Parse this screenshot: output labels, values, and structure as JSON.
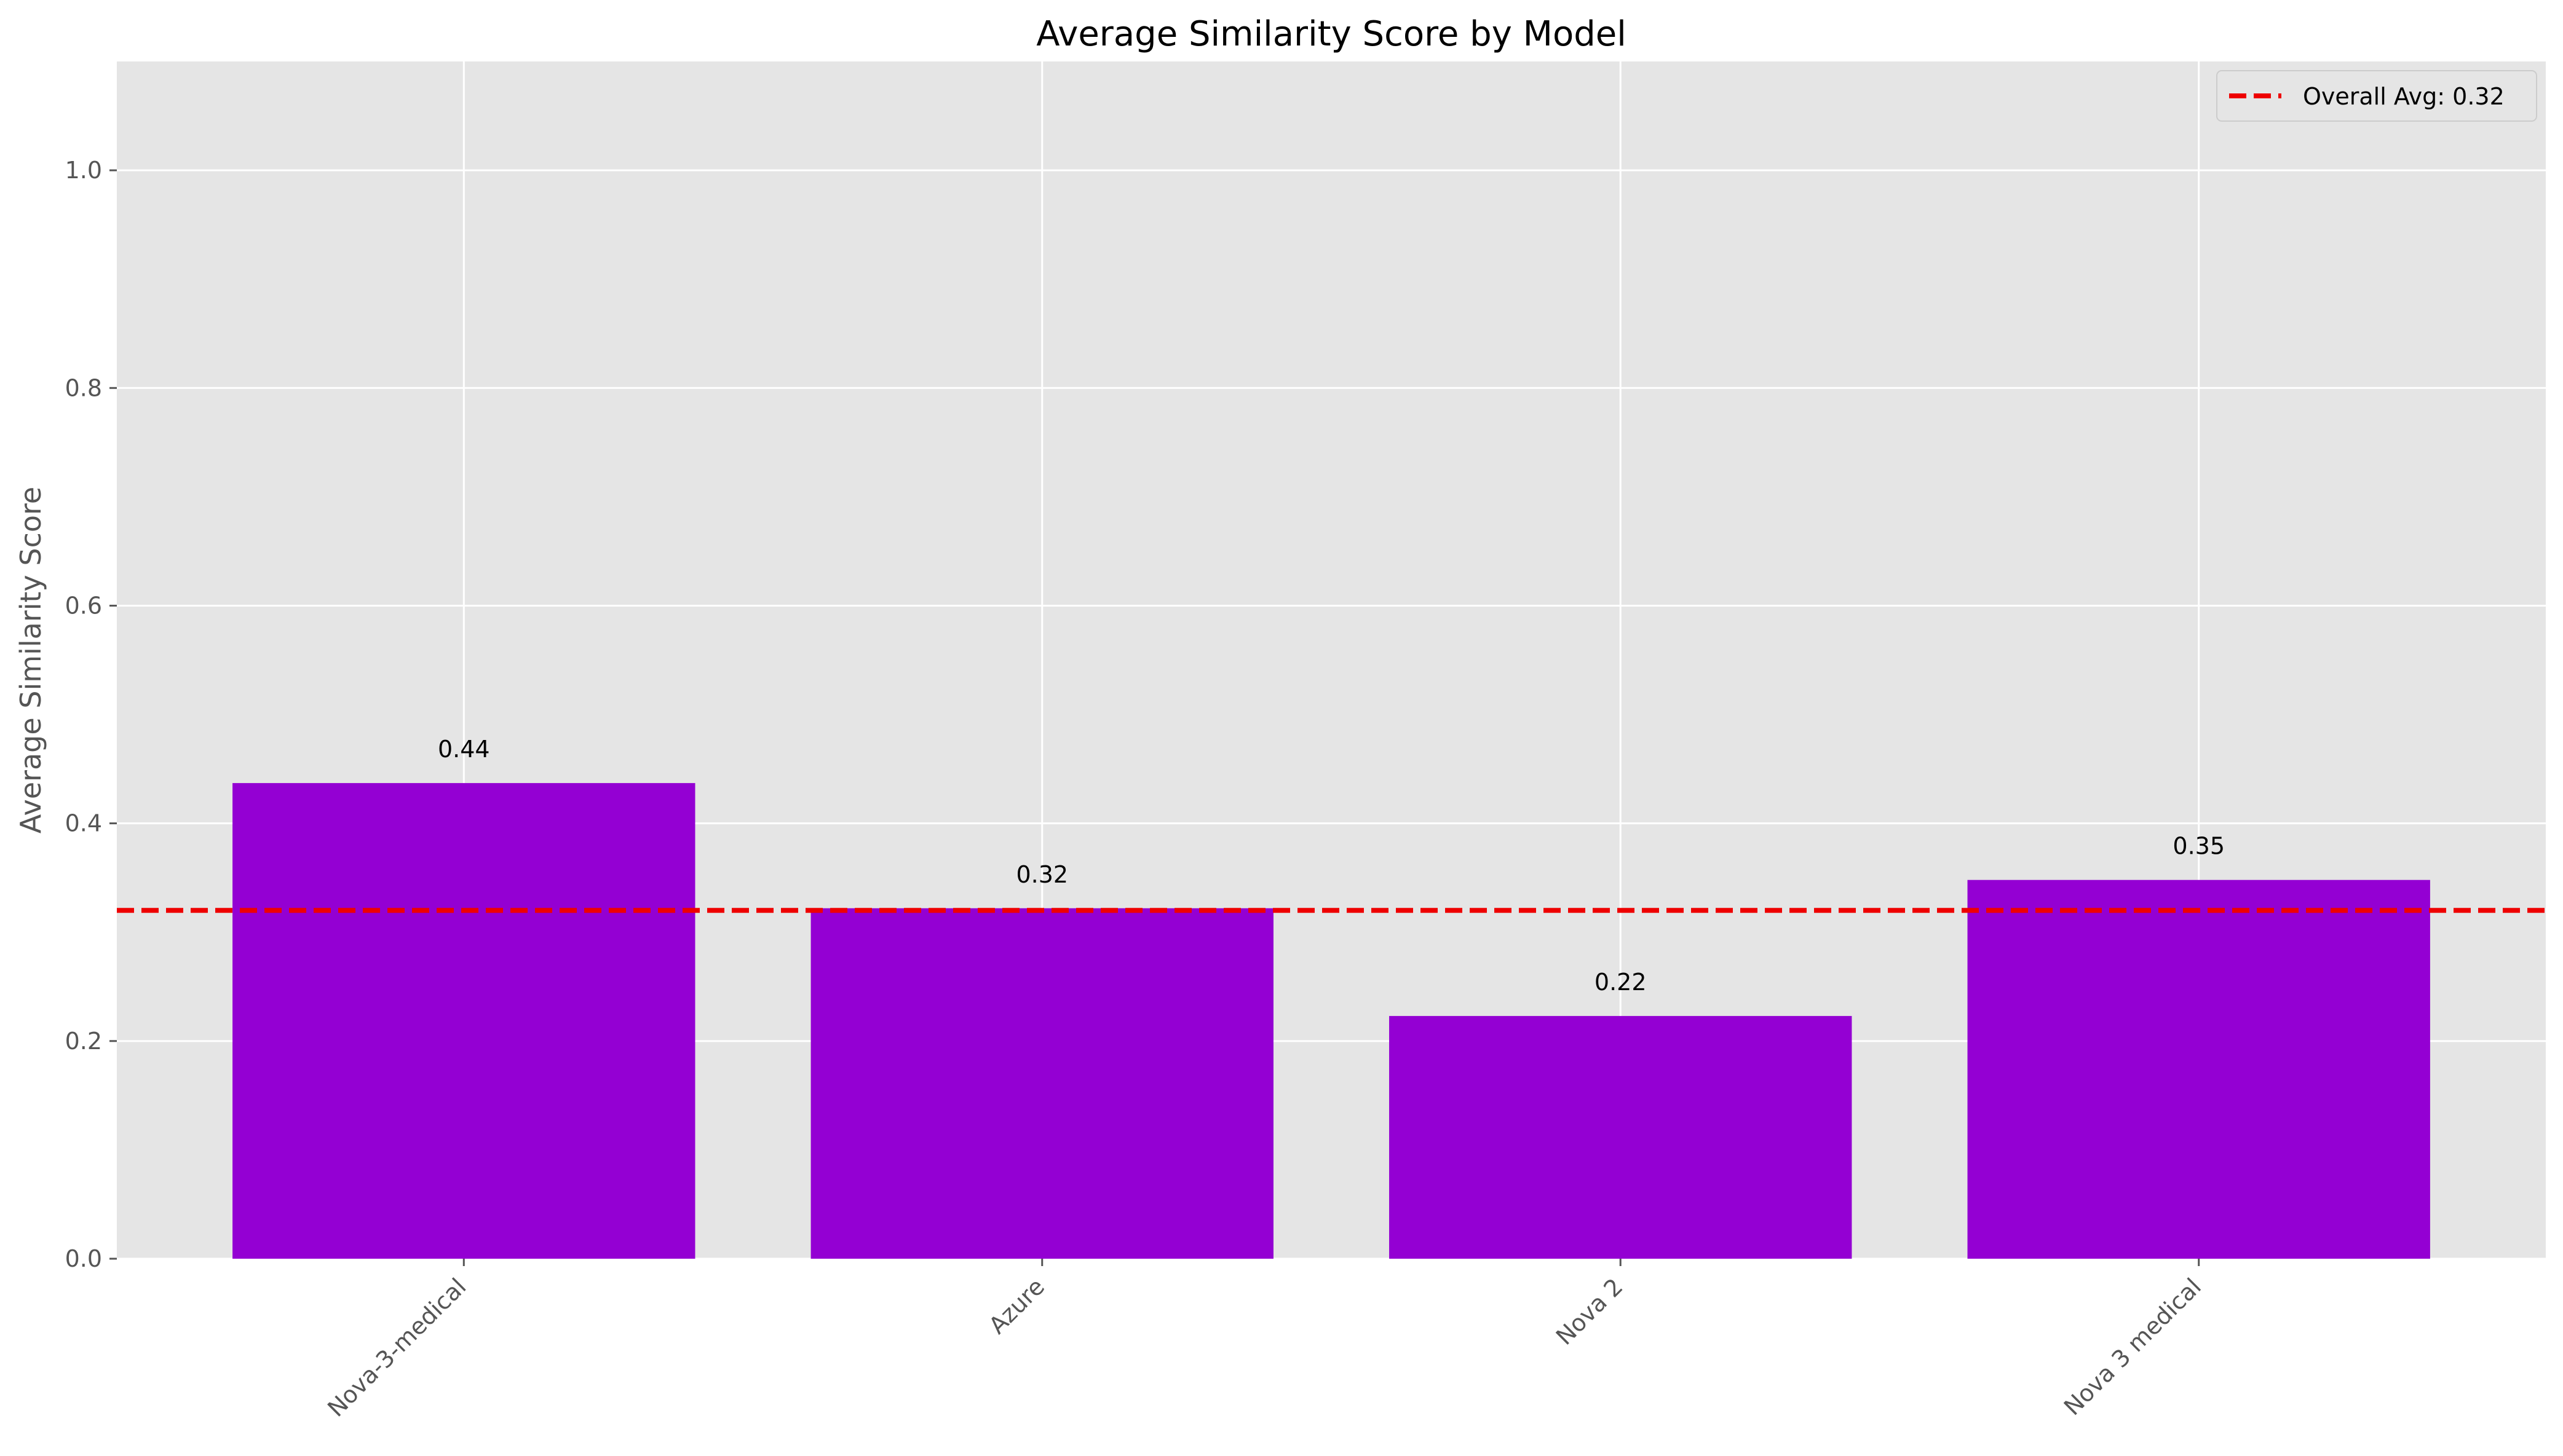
{
  "chart_data": {
    "type": "bar",
    "title": "Average Similarity Score by Model",
    "xlabel": "",
    "ylabel": "Average Similarity Score",
    "categories": [
      "Nova-3-medical",
      "Azure",
      "Nova 2",
      "Nova 3 medical"
    ],
    "values": [
      0.437,
      0.322,
      0.223,
      0.348
    ],
    "data_labels": [
      "0.44",
      "0.32",
      "0.22",
      "0.35"
    ],
    "ylim": [
      0,
      1.1
    ],
    "yticks": [
      0.0,
      0.2,
      0.4,
      0.6,
      0.8,
      1.0
    ],
    "ytick_labels": [
      "0.0",
      "0.2",
      "0.4",
      "0.6",
      "0.8",
      "1.0"
    ],
    "reference_line": {
      "value": 0.32,
      "label": "Overall Avg: 0.32",
      "color": "#ee0000",
      "style": "dashed"
    },
    "bar_color": "#9400d3",
    "grid": true,
    "legend_position": "top-right",
    "background_color": "#e5e5e5"
  }
}
